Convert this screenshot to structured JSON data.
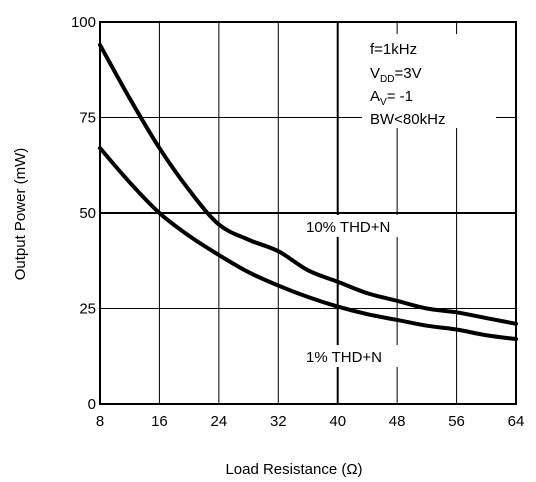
{
  "chart_data": {
    "type": "line",
    "xlabel": "Load Resistance (Ω)",
    "ylabel": "Output Power (mW)",
    "xlim": [
      8,
      64
    ],
    "ylim": [
      0,
      100
    ],
    "x_ticks": [
      8,
      16,
      24,
      32,
      40,
      48,
      56,
      64
    ],
    "y_ticks": [
      0,
      25,
      50,
      75,
      100
    ],
    "grid": true,
    "series": [
      {
        "name": "10% THD+N",
        "x": [
          8,
          12,
          16,
          20,
          24,
          28,
          32,
          36,
          40,
          44,
          48,
          52,
          56,
          60,
          64
        ],
        "y": [
          94,
          80,
          67,
          56,
          47,
          43,
          40,
          35,
          32,
          29,
          27,
          25,
          24,
          22.5,
          21
        ]
      },
      {
        "name": "1% THD+N",
        "x": [
          8,
          12,
          16,
          20,
          24,
          28,
          32,
          36,
          40,
          44,
          48,
          52,
          56,
          60,
          64
        ],
        "y": [
          67,
          58,
          50,
          44,
          39,
          34.5,
          31,
          28,
          25.5,
          23.5,
          22,
          20.5,
          19.5,
          18,
          17
        ]
      }
    ],
    "annotations": {
      "line1": "f=1kHz",
      "line2_main": "V",
      "line2_sub": "DD",
      "line2_rest": "=3V",
      "line3_main": "A",
      "line3_sub": "V",
      "line3_rest": "= -1",
      "line4": "BW<80kHz"
    }
  }
}
